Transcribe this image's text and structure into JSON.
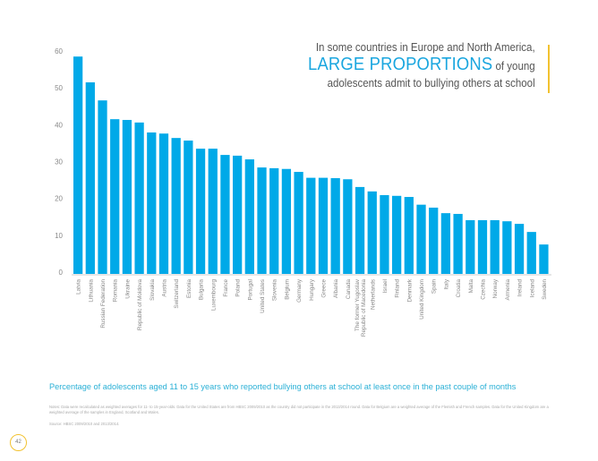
{
  "headline": {
    "line1": "In some countries in Europe and North America,",
    "highlight": "LARGE PROPORTIONS",
    "line2_rest": " of young",
    "line3": "adolescents admit to bullying others at school"
  },
  "colors": {
    "bar": "#00a9e8",
    "accent": "#f2c230",
    "caption": "#2ab0d6"
  },
  "chart_data": {
    "type": "bar",
    "title": "",
    "xlabel": "",
    "ylabel": "",
    "ylim": [
      0,
      60
    ],
    "yticks": [
      0,
      10,
      20,
      30,
      40,
      50,
      60
    ],
    "grid": false,
    "categories": [
      "Latvia",
      "Lithuania",
      "Russian Federation",
      "Romania",
      "Ukraine",
      "Republic of Moldova",
      "Slovakia",
      "Austria",
      "Switzerland",
      "Estonia",
      "Bulgaria",
      "Luxembourg",
      "France",
      "Poland",
      "Portugal",
      "United States",
      "Slovenia",
      "Belgium",
      "Germany",
      "Hungary",
      "Greece",
      "Albania",
      "Canada",
      "The former Yugoslav|Republic of Macedonia",
      "Netherlands",
      "Israel",
      "Finland",
      "Denmark",
      "United Kingdom",
      "Spain",
      "Italy",
      "Croatia",
      "Malta",
      "Czechia",
      "Norway",
      "Armenia",
      "Ireland",
      "Iceland",
      "Sweden"
    ],
    "values": [
      58.5,
      51.5,
      46.6,
      41.5,
      41.3,
      40.6,
      37.9,
      37.6,
      36.4,
      35.7,
      33.5,
      33.5,
      31.8,
      31.6,
      30.6,
      28.4,
      28.2,
      28.0,
      27.2,
      25.6,
      25.6,
      25.5,
      25.2,
      23.1,
      21.9,
      20.9,
      20.7,
      20.4,
      18.3,
      17.5,
      16.0,
      15.8,
      14.1,
      14.1,
      14.1,
      13.8,
      13.1,
      10.9,
      7.5
    ]
  },
  "caption": "Percentage of adolescents aged 11 to 15 years who reported bullying others at school at least once in the past couple of months",
  "notes": "Notes: Data were recalculated as weighted averages for 11- to 15-year-olds. Data for the United States are from HBSC 2009/2010 as the country did not participate in the 2013/2014 round. Data for Belgium are a weighted average of the Flemish and French samples. Data for the United Kingdom are a weighted average of the samples in England, Scotland and Wales.",
  "source": "Source: HBSC 2009/2010 and 2013/2014.",
  "page_number": "42"
}
